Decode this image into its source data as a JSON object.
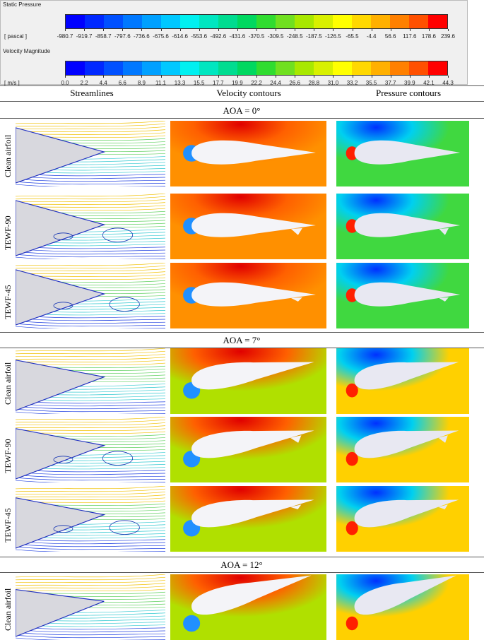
{
  "colorbars": [
    {
      "title": "Static Pressure",
      "unit": "[ pascal ]",
      "ticks": [
        "-980.7",
        "-919.7",
        "-858.7",
        "-797.6",
        "-736.6",
        "-675.6",
        "-614.6",
        "-553.6",
        "-492.6",
        "-431.6",
        "-370.5",
        "-309.5",
        "-248.5",
        "-187.5",
        "-126.5",
        "-65.5",
        "-4.4",
        "56.6",
        "117.6",
        "178.6",
        "239.6"
      ]
    },
    {
      "title": "Velocity Magnitude",
      "unit": "[ m/s ]",
      "ticks": [
        "0.0",
        "2.2",
        "4.4",
        "6.6",
        "8.9",
        "11.1",
        "13.3",
        "15.5",
        "17.7",
        "19.9",
        "22.2",
        "24.4",
        "26.6",
        "28.8",
        "31.0",
        "33.2",
        "35.5",
        "37.7",
        "39.9",
        "42.1",
        "44.3"
      ]
    }
  ],
  "columns": [
    "Streamlines",
    "Velocity contours",
    "Pressure contours"
  ],
  "sections": [
    {
      "title": "AOA = 0°",
      "rows": [
        "Clean airfoil",
        "TEWF-90",
        "TEWF-45"
      ]
    },
    {
      "title": "AOA = 7°",
      "rows": [
        "Clean airfoil",
        "TEWF-90",
        "TEWF-45"
      ]
    },
    {
      "title": "AOA = 12°",
      "rows": [
        "Clean airfoil"
      ]
    }
  ]
}
